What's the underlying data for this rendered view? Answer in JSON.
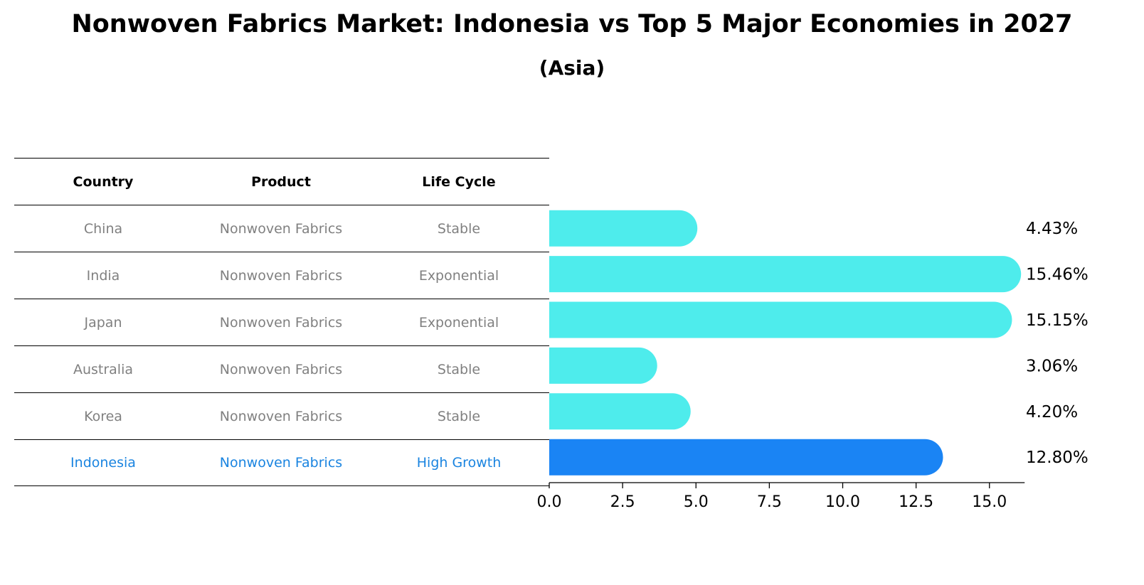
{
  "title": "Nonwoven Fabrics Market: Indonesia vs Top 5 Major Economies in 2027",
  "subtitle": "(Asia)",
  "table": {
    "headers": [
      "Country",
      "Product",
      "Life Cycle"
    ],
    "rows": [
      {
        "country": "China",
        "product": "Nonwoven Fabrics",
        "life_cycle": "Stable"
      },
      {
        "country": "India",
        "product": "Nonwoven Fabrics",
        "life_cycle": "Exponential"
      },
      {
        "country": "Japan",
        "product": "Nonwoven Fabrics",
        "life_cycle": "Exponential"
      },
      {
        "country": "Australia",
        "product": "Nonwoven Fabrics",
        "life_cycle": "Stable"
      },
      {
        "country": "Korea",
        "product": "Nonwoven Fabrics",
        "life_cycle": "Stable"
      },
      {
        "country": "Indonesia",
        "product": "Nonwoven Fabrics",
        "life_cycle": "High Growth"
      }
    ],
    "highlight_row": 5,
    "colors": {
      "header": "#000000",
      "normal": "#808080",
      "highlight": "#1a84e0"
    }
  },
  "chart_data": {
    "type": "bar",
    "orientation": "horizontal",
    "categories": [
      "China",
      "India",
      "Japan",
      "Australia",
      "Korea",
      "Indonesia"
    ],
    "values": [
      4.43,
      15.46,
      15.15,
      3.06,
      4.2,
      12.8
    ],
    "value_labels": [
      "4.43%",
      "15.46%",
      "15.15%",
      "3.06%",
      "4.20%",
      "12.80%"
    ],
    "xlim": [
      0,
      16.2
    ],
    "xticks": [
      0.0,
      2.5,
      5.0,
      7.5,
      10.0,
      12.5,
      15.0
    ],
    "xtick_labels": [
      "0.0",
      "2.5",
      "5.0",
      "7.5",
      "10.0",
      "12.5",
      "15.0"
    ],
    "highlight_index": 5,
    "colors": {
      "bar": "#4eecec",
      "highlight_bar": "#1a84f4"
    },
    "grid": false
  }
}
